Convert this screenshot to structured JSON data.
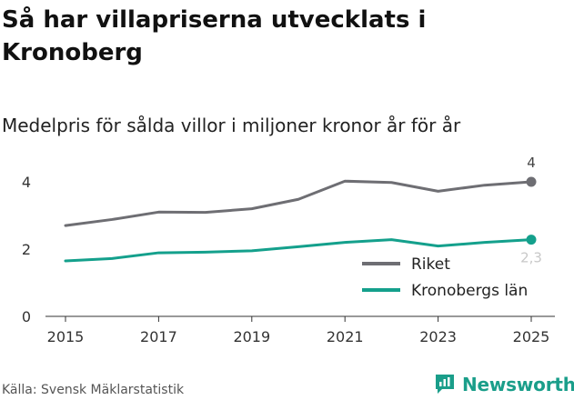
{
  "chart_data": {
    "type": "line",
    "title": "Så har villapriserna utvecklats i Kronoberg",
    "subtitle": "Medelpris för sålda villor i miljoner kronor år för år",
    "x": [
      2015,
      2016,
      2017,
      2018,
      2019,
      2020,
      2021,
      2022,
      2023,
      2024,
      2025
    ],
    "x_ticks": [
      "2015",
      "2017",
      "2019",
      "2021",
      "2023",
      "2025"
    ],
    "y_ticks": [
      "0",
      "2",
      "4"
    ],
    "ylim": [
      0,
      4.3
    ],
    "xlim": [
      2015,
      2025
    ],
    "series": [
      {
        "name": "Riket",
        "color": "#6e6e73",
        "values": [
          2.7,
          2.88,
          3.1,
          3.09,
          3.2,
          3.48,
          4.02,
          3.98,
          3.72,
          3.9,
          4.0
        ],
        "end_label": "4"
      },
      {
        "name": "Kronobergs län",
        "color": "#14a08c",
        "values": [
          1.65,
          1.72,
          1.89,
          1.91,
          1.95,
          2.07,
          2.2,
          2.28,
          2.09,
          2.2,
          2.28
        ],
        "end_label": "2,3"
      }
    ],
    "legend_position": "bottom-right",
    "grid": false
  },
  "footer": {
    "source": "Källa: Svensk Mäklarstatistik",
    "brand": "Newsworthy"
  },
  "colors": {
    "brand": "#1a9e8a"
  }
}
